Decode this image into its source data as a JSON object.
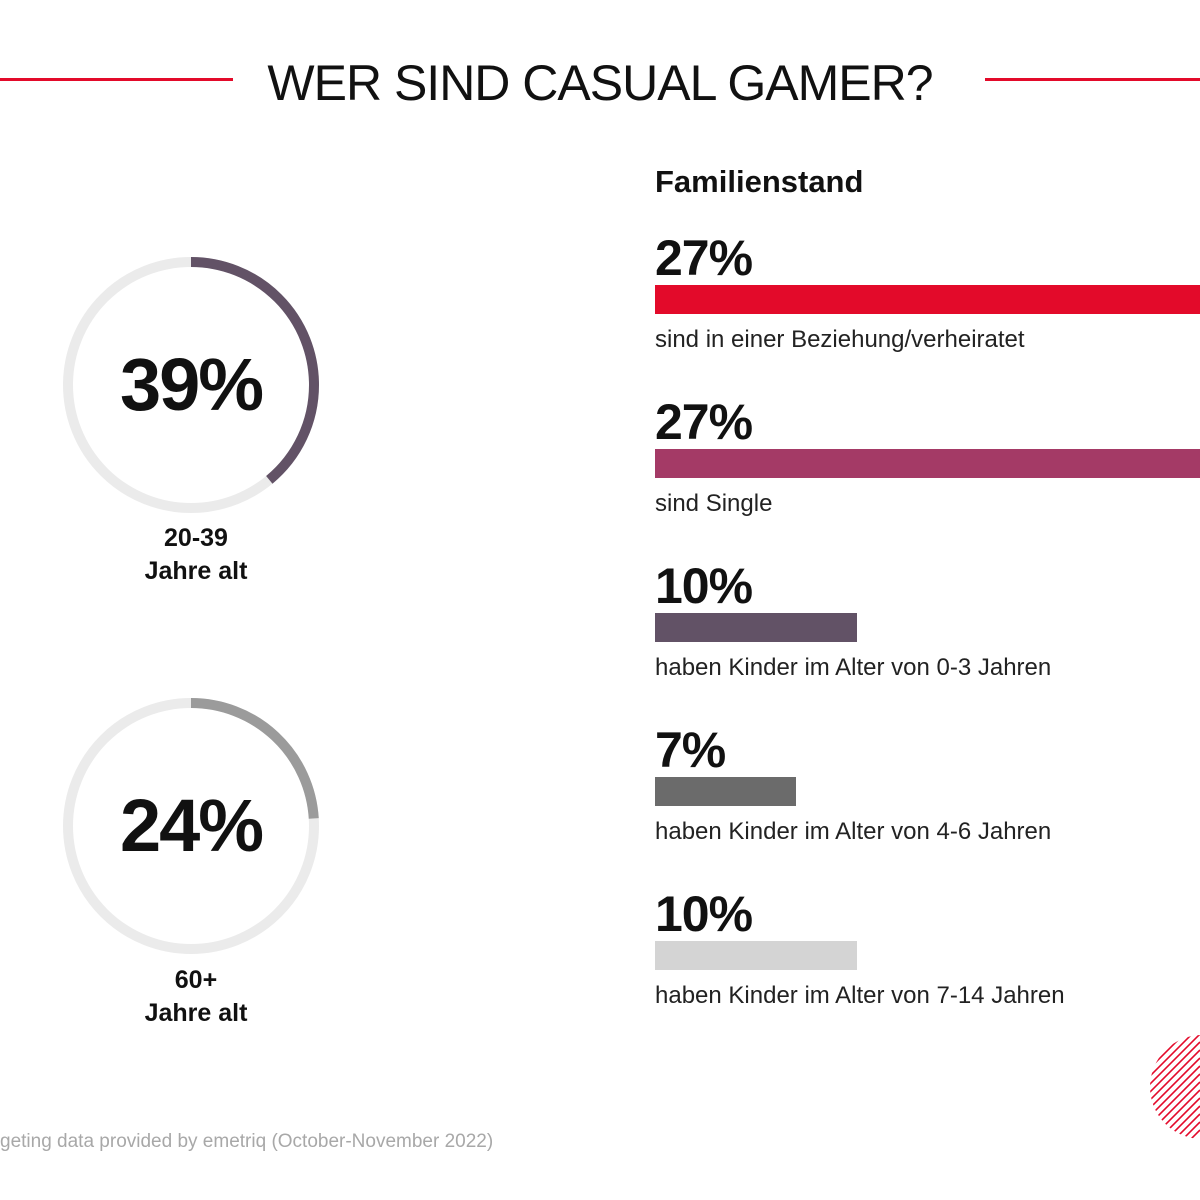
{
  "title": "WER SIND CASUAL GAMER?",
  "colors": {
    "accent": "#e30a2a",
    "ring_track": "#ebebeb"
  },
  "donuts": [
    {
      "value_label": "39%",
      "value": 39,
      "color": "#625266",
      "label_line1": "20-39",
      "label_line2": "Jahre alt"
    },
    {
      "value_label": "24%",
      "value": 24,
      "color": "#9b9b9b",
      "label_line1": "60+",
      "label_line2": "Jahre alt"
    }
  ],
  "chart_data": {
    "type": "bar",
    "title": "Familienstand",
    "xlim": [
      0,
      27
    ],
    "categories": [
      "sind in einer Beziehung/verheiratet",
      "sind Single",
      "haben Kinder im Alter von 0-3 Jahren",
      "haben Kinder im Alter von 4-6 Jahren",
      "haben Kinder im Alter von 7-14 Jahren"
    ],
    "values": [
      27,
      27,
      10,
      7,
      10
    ],
    "value_labels": [
      "27%",
      "27%",
      "10%",
      "7%",
      "10%"
    ],
    "colors": [
      "#e30a2a",
      "#a43a66",
      "#625266",
      "#6b6b6b",
      "#d4d4d4"
    ]
  },
  "source": "geting data provided by emetriq (October-November 2022)",
  "logo": {
    "icon": "striped-circle-logo-icon"
  }
}
